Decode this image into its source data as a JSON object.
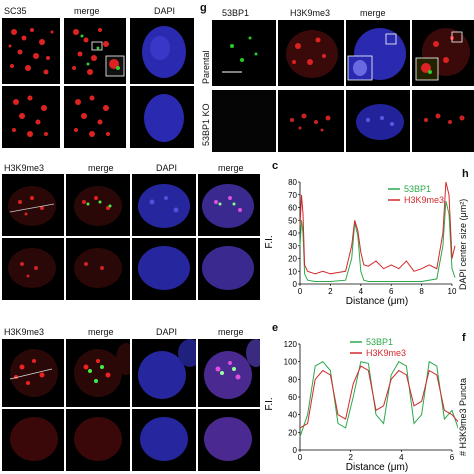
{
  "top_left": {
    "headers": [
      "SC35",
      "merge",
      "DAPI"
    ]
  },
  "panel_g": {
    "letter": "g",
    "headers": [
      "53BP1",
      "H3K9me3",
      "merge"
    ],
    "row_labels": [
      "Parental",
      "53BP1 KO"
    ]
  },
  "mid_left": {
    "headers": [
      "H3K9me3",
      "merge",
      "DAPI",
      "merge"
    ]
  },
  "bottom_left": {
    "headers": [
      "H3K9me3",
      "merge",
      "DAPI",
      "merge"
    ]
  },
  "panel_c": {
    "letter": "c",
    "ylabel": "F.I.",
    "xlabel": "Distance (μm)",
    "legend": [
      "53BP1",
      "H3K9me3"
    ]
  },
  "panel_e": {
    "letter": "e",
    "ylabel": "F.I.",
    "xlabel": "Distance (μm)",
    "legend": [
      "53BP1",
      "H3K9me3"
    ]
  },
  "panel_h": {
    "letter": "h",
    "ylabel": "DAPI center size (μm²)"
  },
  "panel_f": {
    "letter": "f",
    "ylabel": "# H3K9me3 Puncta"
  },
  "colors": {
    "green": "#2aa84a",
    "red": "#d4282c",
    "blue": "#2a2ab0"
  },
  "chart_data": [
    {
      "type": "line",
      "name_panel": "c",
      "xlabel": "Distance (μm)",
      "ylabel": "F.I.",
      "ylim": [
        0,
        80
      ],
      "xlim": [
        0,
        10
      ],
      "yticks": [
        0,
        10,
        20,
        30,
        40,
        50,
        60,
        70,
        80
      ],
      "xticks": [
        0,
        2,
        4,
        6,
        8,
        10
      ],
      "legend_position": "top-right",
      "series": [
        {
          "name": "53BP1",
          "color": "#2aa84a",
          "x": [
            0,
            0.1,
            0.2,
            0.3,
            0.5,
            1,
            2,
            3,
            3.4,
            3.6,
            3.8,
            4.0,
            4.2,
            4.5,
            5,
            6,
            7,
            8,
            9,
            9.4,
            9.6,
            9.8,
            10.0,
            10.2
          ],
          "y": [
            30,
            50,
            40,
            8,
            3,
            2,
            2,
            3,
            20,
            48,
            38,
            10,
            3,
            2,
            2,
            2,
            2,
            2,
            4,
            30,
            65,
            55,
            12,
            5
          ]
        },
        {
          "name": "H3K9me3",
          "color": "#d4282c",
          "x": [
            0,
            0.1,
            0.2,
            0.3,
            0.5,
            1,
            1.5,
            2,
            2.5,
            3,
            3.4,
            3.6,
            3.8,
            4.0,
            4.2,
            4.5,
            5,
            5.5,
            6,
            6.5,
            7,
            7.5,
            8,
            8.5,
            9,
            9.4,
            9.6,
            9.8,
            10.0,
            10.2
          ],
          "y": [
            45,
            70,
            55,
            15,
            10,
            8,
            10,
            8,
            9,
            10,
            30,
            50,
            42,
            25,
            15,
            14,
            18,
            12,
            15,
            12,
            18,
            10,
            12,
            15,
            12,
            40,
            80,
            70,
            20,
            30
          ]
        }
      ]
    },
    {
      "type": "line",
      "name_panel": "e",
      "xlabel": "Distance (μm)",
      "ylabel": "F.I.",
      "ylim": [
        0,
        120
      ],
      "xlim": [
        0,
        6
      ],
      "yticks": [
        0,
        20,
        40,
        60,
        80,
        100,
        120
      ],
      "xticks": [
        0,
        2,
        4,
        6
      ],
      "legend_position": "top-right",
      "series": [
        {
          "name": "53BP1",
          "color": "#2aa84a",
          "x": [
            0,
            0.3,
            0.6,
            0.9,
            1.2,
            1.5,
            1.8,
            2.1,
            2.4,
            2.7,
            3.0,
            3.3,
            3.6,
            3.9,
            4.2,
            4.5,
            4.8,
            5.1,
            5.4,
            5.7,
            6.0,
            6.3
          ],
          "y": [
            15,
            40,
            95,
            100,
            90,
            30,
            25,
            60,
            100,
            98,
            40,
            30,
            85,
            100,
            95,
            30,
            40,
            100,
            95,
            35,
            45,
            20
          ]
        },
        {
          "name": "H3K9me3",
          "color": "#d4282c",
          "x": [
            0,
            0.3,
            0.6,
            0.9,
            1.2,
            1.5,
            1.8,
            2.1,
            2.4,
            2.7,
            3.0,
            3.3,
            3.6,
            3.9,
            4.2,
            4.5,
            4.8,
            5.1,
            5.4,
            5.7,
            6.0,
            6.3
          ],
          "y": [
            25,
            30,
            80,
            90,
            85,
            40,
            35,
            75,
            95,
            90,
            45,
            50,
            80,
            90,
            85,
            50,
            55,
            90,
            85,
            45,
            40,
            30
          ]
        }
      ]
    }
  ]
}
